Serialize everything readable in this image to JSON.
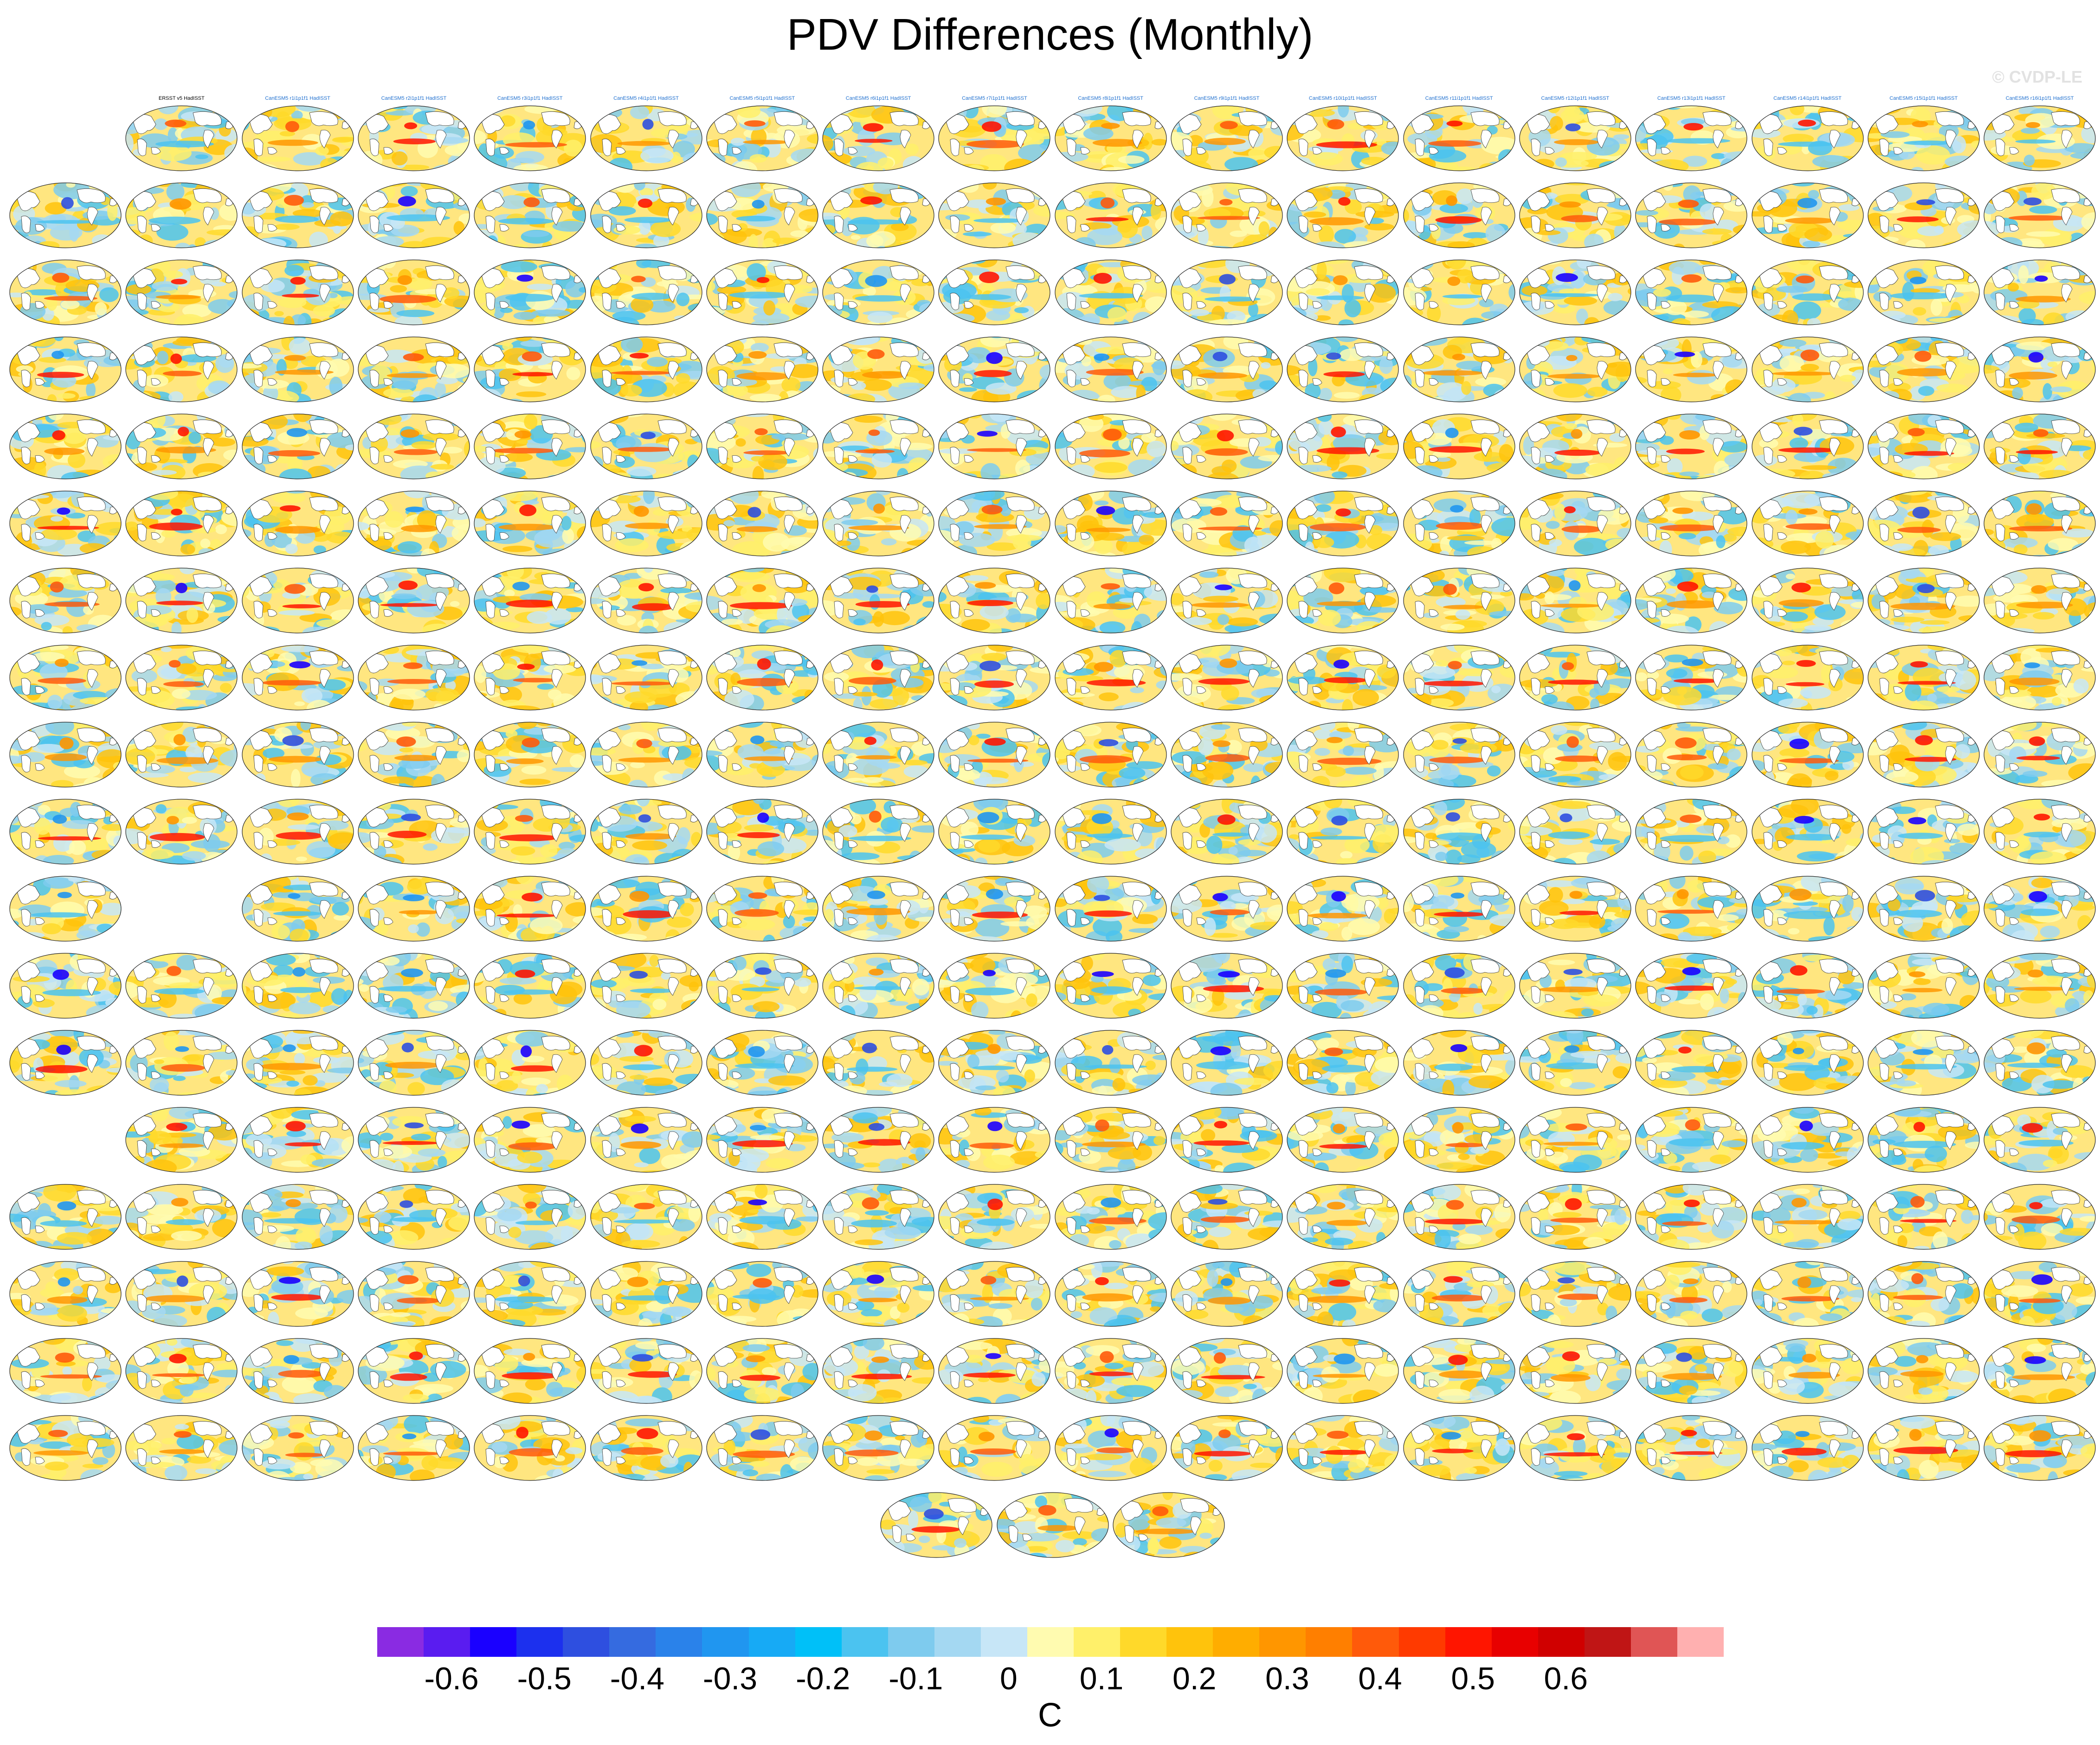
{
  "title": "PDV Differences (Monthly)",
  "watermark": "© CVDP-LE",
  "colorbar": {
    "units": "C",
    "tick_labels": [
      "-0.6",
      "-0.5",
      "-0.4",
      "-0.3",
      "-0.2",
      "-0.1",
      "0",
      "0.1",
      "0.2",
      "0.3",
      "0.4",
      "0.5",
      "0.6"
    ],
    "colors": [
      "#8a2be2",
      "#5a1cf0",
      "#1a00ff",
      "#1c30ee",
      "#2e4fe0",
      "#356be0",
      "#2a82ea",
      "#2096f0",
      "#17aaf5",
      "#00c0f8",
      "#4bc3f0",
      "#7ecbee",
      "#a4d8f2",
      "#c7e6f7",
      "#fffbb0",
      "#fff06a",
      "#ffd92a",
      "#ffc30c",
      "#ffad00",
      "#ff9600",
      "#ff7f00",
      "#ff5a0a",
      "#ff3a00",
      "#ff1500",
      "#e80000",
      "#d00000",
      "#c01515",
      "#e05555",
      "#ffb0b0"
    ]
  },
  "panel_label_colors": {
    "ERSST": "#000000",
    "CanESM": "#1e6fcf",
    "CESM1": "#6aa9e0",
    "CNRM": "#ff69b4",
    "GISS": "#d2691e",
    "IPSL": "#b06ad8",
    "MPI": "#a0a0a0"
  },
  "panels": [
    {
      "label": "ERSST v5 HadISST",
      "group": "ERSST",
      "style": "mixed"
    },
    {
      "label": "CanESM5 r1i1p1f1 HadISST",
      "group": "CanESM",
      "style": "mixed"
    },
    {
      "label": "CanESM5 r2i1p1f1 HadISST",
      "group": "CanESM",
      "style": "mixed"
    },
    {
      "label": "CanESM5 r3i1p1f1 HadISST",
      "group": "CanESM",
      "style": "mixed"
    },
    {
      "label": "CanESM5 r4i1p1f1 HadISST",
      "group": "CanESM",
      "style": "mixed"
    },
    {
      "label": "CanESM5 r5i1p1f1 HadISST",
      "group": "CanESM",
      "style": "mixed"
    },
    {
      "label": "CanESM5 r6i1p1f1 HadISST",
      "group": "CanESM",
      "style": "mixed"
    },
    {
      "label": "CanESM5 r7i1p1f1 HadISST",
      "group": "CanESM",
      "style": "mixed"
    },
    {
      "label": "CanESM5 r8i1p1f1 HadISST",
      "group": "CanESM",
      "style": "mixed"
    },
    {
      "label": "CanESM5 r9i1p1f1 HadISST",
      "group": "CanESM",
      "style": "mixed"
    },
    {
      "label": "CanESM5 r10i1p1f1 HadISST",
      "group": "CanESM",
      "style": "mixed"
    },
    {
      "label": "CanESM5 r11i1p1f1 HadISST",
      "group": "CanESM",
      "style": "mixed"
    },
    {
      "label": "CanESM5 r12i1p1f1 HadISST",
      "group": "CanESM",
      "style": "mixed"
    },
    {
      "label": "CanESM5 r13i1p1f1 HadISST",
      "group": "CanESM",
      "style": "mixed"
    },
    {
      "label": "CanESM5 r14i1p1f1 HadISST",
      "group": "CanESM",
      "style": "mixed"
    },
    {
      "label": "CanESM5 r15i1p1f1 HadISST",
      "group": "CanESM",
      "style": "mixed"
    },
    {
      "label": "CanESM5 r16i1p1f1 HadISST",
      "group": "CanESM",
      "style": "mixed"
    }
  ],
  "layout_rows": [
    {
      "cols": [
        1,
        2,
        3,
        4,
        5,
        6,
        7,
        8,
        9,
        10,
        11,
        12,
        13,
        14,
        15,
        16,
        17
      ],
      "group": "ERSST_CanESM"
    },
    {
      "cols": [
        0,
        1,
        2,
        3,
        4,
        5,
        6,
        7,
        8,
        9,
        10,
        11,
        12,
        13,
        14,
        15,
        16,
        17
      ],
      "group": "CanESM"
    },
    {
      "cols": [
        0,
        1,
        2,
        3,
        4,
        5,
        6,
        7,
        8,
        9,
        10,
        11,
        12,
        13,
        14,
        15,
        16,
        17
      ],
      "group": "CanESM"
    },
    {
      "cols": [
        0,
        1,
        2,
        3,
        4,
        5,
        6,
        7,
        8,
        9,
        10,
        11,
        12,
        13,
        14,
        15,
        16,
        17
      ],
      "group": "CanESM_CESM1"
    },
    {
      "cols": [
        0,
        1,
        2,
        3,
        4,
        5,
        6,
        7,
        8,
        9,
        10,
        11,
        12,
        13,
        14,
        15,
        16,
        17
      ],
      "group": "CESM1"
    },
    {
      "cols": [
        0,
        1,
        2,
        3,
        4,
        5,
        6,
        7,
        8,
        9,
        10,
        11,
        12,
        13,
        14,
        15,
        16,
        17
      ],
      "group": "CESM1"
    },
    {
      "cols": [
        0,
        1,
        2,
        3,
        4,
        5,
        6,
        7,
        8,
        9,
        10,
        11,
        12,
        13,
        14,
        15,
        16,
        17
      ],
      "group": "CESM1"
    },
    {
      "cols": [
        0,
        1,
        2,
        3,
        4,
        5,
        6,
        7,
        8,
        9,
        10,
        11,
        12,
        13,
        14,
        15,
        16,
        17
      ],
      "group": "CESM1"
    },
    {
      "cols": [
        0,
        1,
        2,
        3,
        4,
        5,
        6,
        7,
        8,
        9,
        10,
        11,
        12,
        13,
        14,
        15,
        16,
        17
      ],
      "group": "CESM1"
    },
    {
      "cols": [
        0,
        1,
        2,
        3,
        4,
        5,
        6,
        7,
        8,
        9,
        10,
        11,
        12,
        13,
        14,
        15,
        16,
        17
      ],
      "group": "CESM1_CNRM"
    },
    {
      "cols": [
        0,
        2,
        3,
        4,
        5,
        6,
        7,
        8,
        9,
        10,
        11,
        12,
        13,
        14,
        15,
        16,
        17
      ],
      "group": "CNRM"
    },
    {
      "cols": [
        0,
        1,
        2,
        3,
        4,
        5,
        6,
        7,
        8,
        9,
        10,
        11,
        12,
        13,
        14,
        15,
        16,
        17
      ],
      "group": "GISS"
    },
    {
      "cols": [
        0,
        1,
        2,
        3,
        4,
        5,
        6,
        7,
        8,
        9,
        10,
        11,
        12,
        13,
        14,
        15,
        16,
        17
      ],
      "group": "GISS"
    },
    {
      "cols": [
        1,
        2,
        3,
        4,
        5,
        6,
        7,
        8,
        9,
        10,
        11,
        12,
        13,
        14,
        15,
        16,
        17
      ],
      "group": "GISS_IPSL"
    },
    {
      "cols": [
        0,
        1,
        2,
        3,
        4,
        5,
        6,
        7,
        8,
        9,
        10,
        11,
        12,
        13,
        14,
        15,
        16,
        17
      ],
      "group": "IPSL"
    },
    {
      "cols": [
        0,
        1,
        2,
        3,
        4,
        5,
        6,
        7,
        8,
        9,
        10,
        11,
        12,
        13,
        14,
        15,
        16,
        17
      ],
      "group": "IPSL_MPI"
    },
    {
      "cols": [
        0,
        1,
        2,
        3,
        4,
        5,
        6,
        7,
        8,
        9,
        10,
        11,
        12,
        13,
        14,
        15,
        16,
        17
      ],
      "group": "MPI"
    },
    {
      "cols": [
        0,
        1,
        2,
        3,
        4,
        5,
        6,
        7,
        8,
        9,
        10,
        11,
        12,
        13,
        14,
        15,
        16,
        17
      ],
      "group": "MPI"
    },
    {
      "cols": [
        7.5,
        8.5,
        9.5
      ],
      "group": "MPI"
    }
  ]
}
